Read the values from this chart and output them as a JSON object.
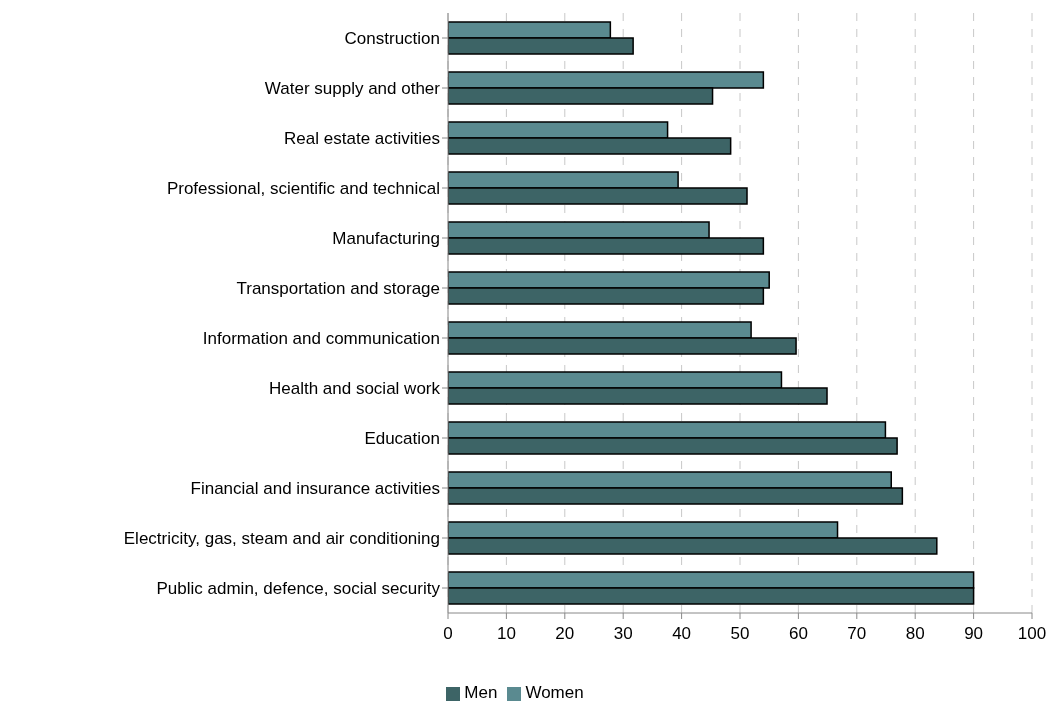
{
  "chart_data": {
    "type": "bar",
    "orientation": "horizontal",
    "categories": [
      "Construction",
      "Water supply and other",
      "Real estate activities",
      "Professional, scientific and technical",
      "Manufacturing",
      "Transportation and storage",
      "Information and communication",
      "Health and social work",
      "Education",
      "Financial and insurance activities",
      "Electricity, gas, steam and air conditioning",
      "Public admin, defence, social security"
    ],
    "series": [
      {
        "name": "Men",
        "color": "#3d6466",
        "values": [
          31.7,
          45.3,
          48.4,
          51.2,
          54,
          54,
          59.6,
          64.9,
          76.9,
          77.8,
          83.7,
          90
        ]
      },
      {
        "name": "Women",
        "color": "#5a8a90",
        "values": [
          27.8,
          54,
          37.6,
          39.4,
          44.7,
          55,
          51.9,
          57.1,
          74.9,
          75.9,
          66.7,
          90
        ]
      }
    ],
    "xlim": [
      0,
      100
    ],
    "xticks": [
      0,
      10,
      20,
      30,
      40,
      50,
      60,
      70,
      80,
      90,
      100
    ],
    "grid": "x",
    "legend": "bottom"
  }
}
